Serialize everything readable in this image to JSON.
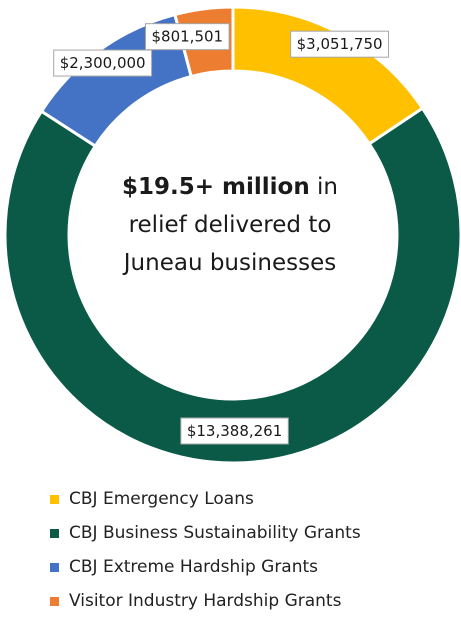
{
  "chart_data": {
    "type": "donut",
    "title": "",
    "center_text": {
      "bold": "$19.5+ million",
      "rest_line1": " in",
      "line2": "relief delivered to",
      "line3": "Juneau businesses"
    },
    "series": [
      {
        "name": "CBJ Emergency Loans",
        "value": 3051750,
        "label": "$3,051,750",
        "color": "#FFC000"
      },
      {
        "name": "CBJ Business Sustainability Grants",
        "value": 13388261,
        "label": "$13,388,261",
        "color": "#0B5A48"
      },
      {
        "name": "CBJ Extreme Hardship Grants",
        "value": 2300000,
        "label": "$2,300,000",
        "color": "#4472C4"
      },
      {
        "name": "Visitor Industry Hardship Grants",
        "value": 801501,
        "label": "$801,501",
        "color": "#ED7D31"
      }
    ],
    "legend_position": "bottom"
  }
}
